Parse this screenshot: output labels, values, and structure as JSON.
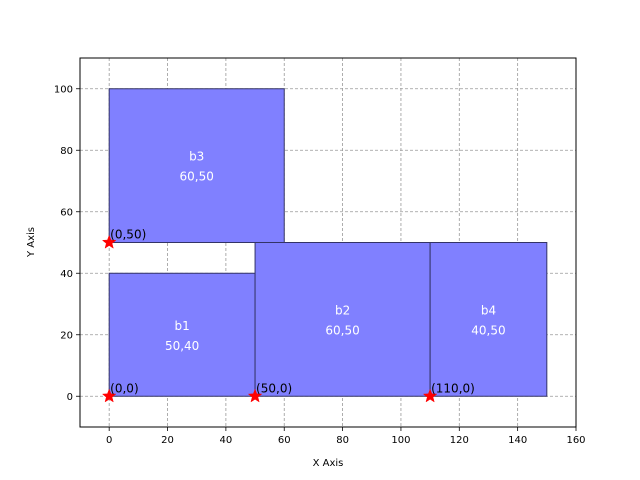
{
  "chart_data": {
    "type": "rectangle-packing",
    "xlabel": "X Axis",
    "ylabel": "Y Axis",
    "xlim": [
      -10,
      160
    ],
    "ylim": [
      -10,
      110
    ],
    "xticks": [
      0,
      20,
      40,
      60,
      80,
      100,
      120,
      140,
      160
    ],
    "yticks": [
      0,
      20,
      40,
      60,
      80,
      100
    ],
    "grid": true,
    "fill_color": "#8080ff",
    "edge_color": "#333366",
    "point_color": "#ff0000",
    "rects": [
      {
        "name": "b1",
        "size": "50,40",
        "x": 0,
        "y": 0,
        "w": 50,
        "h": 40
      },
      {
        "name": "b2",
        "size": "60,50",
        "x": 50,
        "y": 0,
        "w": 60,
        "h": 50
      },
      {
        "name": "b3",
        "size": "60,50",
        "x": 0,
        "y": 50,
        "w": 60,
        "h": 50
      },
      {
        "name": "b4",
        "size": "40,50",
        "x": 110,
        "y": 0,
        "w": 40,
        "h": 50
      }
    ],
    "points": [
      {
        "x": 0,
        "y": 0,
        "label": "(0,0)"
      },
      {
        "x": 50,
        "y": 0,
        "label": "(50,0)"
      },
      {
        "x": 110,
        "y": 0,
        "label": "(110,0)"
      },
      {
        "x": 0,
        "y": 50,
        "label": "(0,50)"
      }
    ]
  }
}
